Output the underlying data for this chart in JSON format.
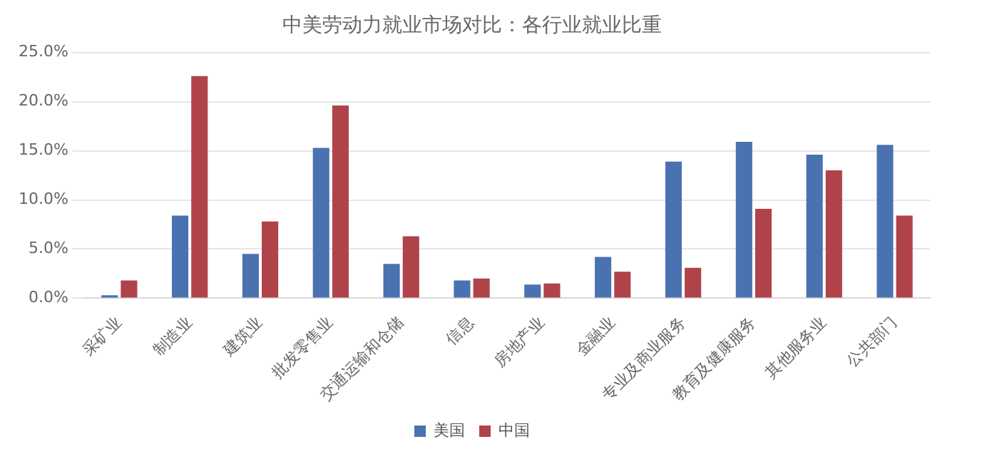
{
  "chart_data": {
    "type": "bar",
    "title": "中美劳动力就业市场对比：各行业就业比重",
    "categories": [
      "采矿业",
      "制造业",
      "建筑业",
      "批发零售业",
      "交通运输和仓储",
      "信息",
      "房地产业",
      "金融业",
      "专业及商业服务",
      "教育及健康服务",
      "其他服务业",
      "公共部门"
    ],
    "series": [
      {
        "name": "美国",
        "color": "#4a72b0",
        "values": [
          0.3,
          8.4,
          4.5,
          15.3,
          3.5,
          1.8,
          1.4,
          4.2,
          13.9,
          15.9,
          14.6,
          15.6
        ]
      },
      {
        "name": "中国",
        "color": "#b0434a",
        "values": [
          1.8,
          22.6,
          7.8,
          19.6,
          6.3,
          2.0,
          1.5,
          2.7,
          3.1,
          9.1,
          13.0,
          8.4
        ]
      }
    ],
    "ylim": [
      0,
      25
    ],
    "yticks": [
      {
        "value": 0,
        "label": "0.0%"
      },
      {
        "value": 5,
        "label": "5.0%"
      },
      {
        "value": 10,
        "label": "10.0%"
      },
      {
        "value": 15,
        "label": "15.0%"
      },
      {
        "value": 20,
        "label": "20.0%"
      },
      {
        "value": 25,
        "label": "25.0%"
      }
    ],
    "grid": "y",
    "legend": "bottom"
  }
}
